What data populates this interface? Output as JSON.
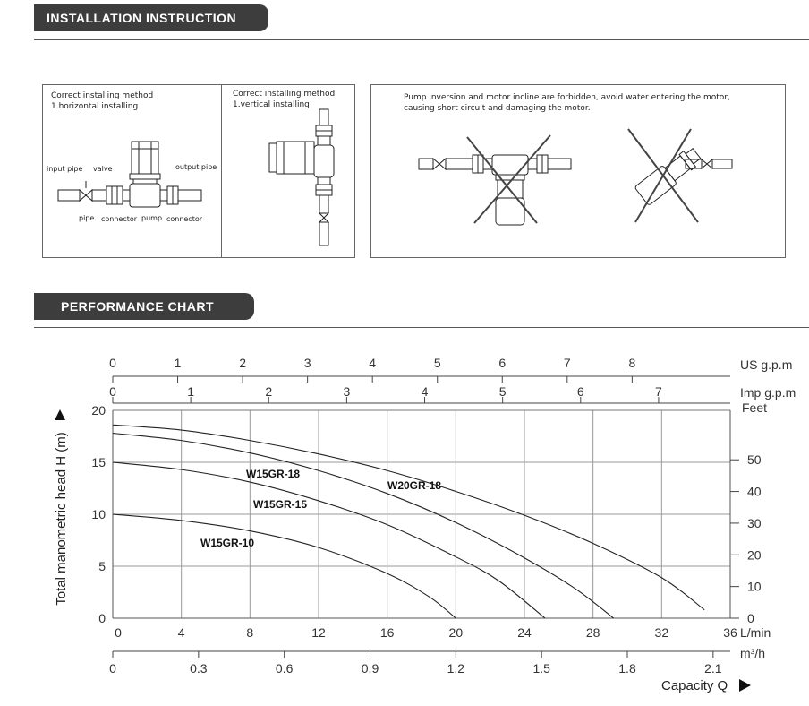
{
  "headings": {
    "installation": "INSTALLATION  INSTRUCTION",
    "performance": "PERFORMANCE CHART"
  },
  "installation": {
    "horizontal": {
      "title": "Correct installing method",
      "subtitle": "1.horizontal installing"
    },
    "vertical": {
      "title": "Correct installing method",
      "subtitle": "1.vertical installing"
    },
    "warning_line1": "Pump inversion and motor incline are forbidden, avoid water entering the motor,",
    "warning_line2": "causing short circuit and damaging the motor.",
    "labels": {
      "input_pipe": "input pipe",
      "valve": "valve",
      "output_pipe": "output pipe",
      "pipe": "pipe",
      "connector_left": "connector",
      "pump": "pump",
      "connector_right": "connector"
    }
  },
  "chart_data": {
    "type": "line",
    "ylabel": "Total manometric head H (m)",
    "xlabel": "Capacity Q",
    "x_unit": "L/min",
    "xlim": [
      0,
      36
    ],
    "ylim": [
      0,
      20
    ],
    "x_ticks": [
      0,
      4,
      8,
      12,
      16,
      20,
      24,
      28,
      32,
      36
    ],
    "y_ticks": [
      0,
      5,
      10,
      15,
      20
    ],
    "grid": true,
    "series": [
      {
        "name": "W20GR-18",
        "x": [
          0,
          4,
          8,
          12,
          16,
          20,
          24,
          28,
          32,
          34.5
        ],
        "y": [
          18.6,
          18.1,
          17.1,
          15.8,
          14.2,
          12.2,
          9.9,
          7.2,
          3.9,
          0.8
        ]
      },
      {
        "name": "W15GR-18",
        "x": [
          0,
          4,
          8,
          12,
          16,
          20,
          24,
          27,
          29.2
        ],
        "y": [
          17.8,
          17.1,
          15.9,
          14.2,
          12.0,
          9.2,
          5.8,
          2.8,
          0
        ]
      },
      {
        "name": "W15GR-15",
        "x": [
          0,
          4,
          8,
          12,
          16,
          20,
          22.5,
          25.2
        ],
        "y": [
          15.0,
          14.3,
          13.1,
          11.3,
          9.0,
          5.9,
          3.6,
          0
        ]
      },
      {
        "name": "W15GR-10",
        "x": [
          0,
          4,
          8,
          12,
          16,
          18.5,
          20
        ],
        "y": [
          10.0,
          9.4,
          8.4,
          6.8,
          4.3,
          2.0,
          0
        ]
      }
    ],
    "secondary_axes": {
      "us_gpm": {
        "label": "US g.p.m",
        "ticks": [
          "0",
          "1",
          "2",
          "3",
          "4",
          "5",
          "6",
          "7",
          "8"
        ],
        "values": [
          0,
          1,
          2,
          3,
          4,
          5,
          6,
          7,
          8
        ],
        "lpm_per_unit": 3.785
      },
      "imp_gpm": {
        "label": "Imp g.p.m",
        "ticks": [
          "0",
          "1",
          "2",
          "3",
          "4",
          "5",
          "6",
          "7"
        ],
        "values": [
          0,
          1,
          2,
          3,
          4,
          5,
          6,
          7
        ],
        "lpm_per_unit": 4.546
      },
      "m3h": {
        "label": "m³/h",
        "ticks": [
          "0",
          "0.3",
          "0.6",
          "0.9",
          "1.2",
          "1.5",
          "1.8",
          "2.1"
        ],
        "values": [
          0,
          0.3,
          0.6,
          0.9,
          1.2,
          1.5,
          1.8,
          2.1
        ],
        "lpm_per_unit": 16.667
      },
      "feet": {
        "label": "Feet",
        "ticks": [
          "0",
          "10",
          "20",
          "30",
          "40",
          "50"
        ],
        "values": [
          0,
          10,
          20,
          30,
          40,
          50
        ],
        "m_per_unit": 0.3048
      }
    }
  }
}
